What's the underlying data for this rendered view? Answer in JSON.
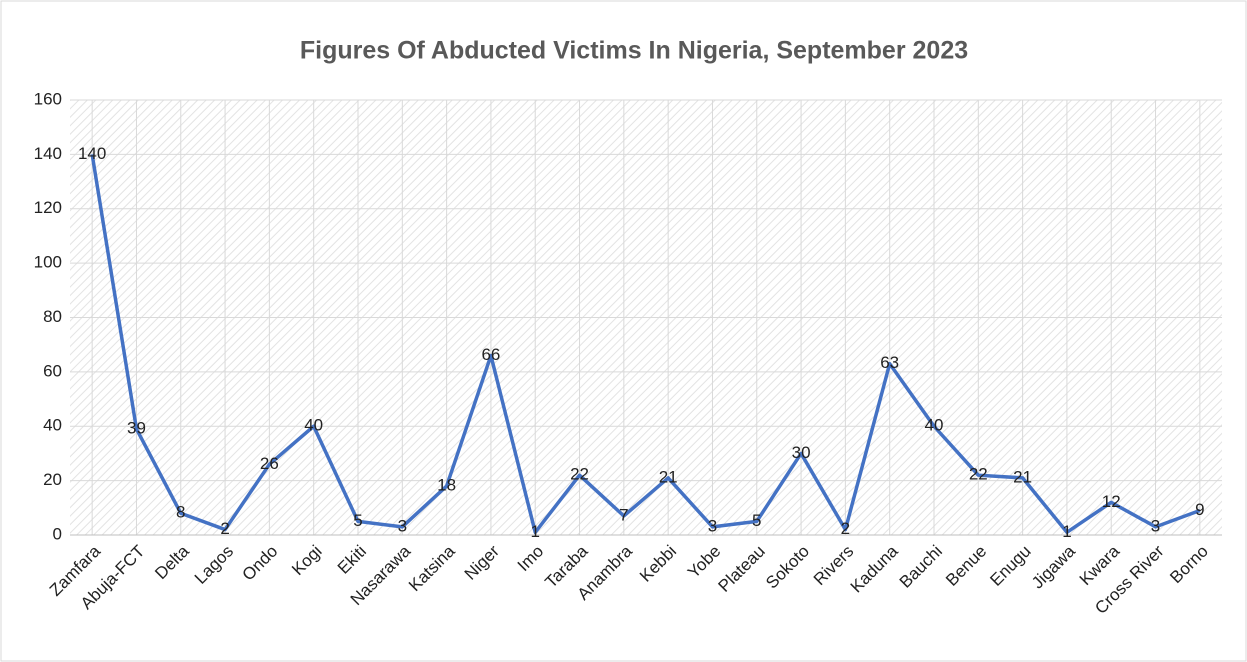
{
  "chart_data": {
    "type": "line",
    "title": "Figures Of Abducted Victims In Nigeria, September 2023",
    "categories": [
      "Zamfara",
      "Abuja-FCT",
      "Delta",
      "Lagos",
      "Ondo",
      "Kogi",
      "Ekiti",
      "Nasarawa",
      "Katsina",
      "Niger",
      "Imo",
      "Taraba",
      "Anambra",
      "Kebbi",
      "Yobe",
      "Plateau",
      "Sokoto",
      "Rivers",
      "Kaduna",
      "Bauchi",
      "Benue",
      "Enugu",
      "Jigawa",
      "Kwara",
      "Cross River",
      "Borno"
    ],
    "values": [
      140,
      39,
      8,
      2,
      26,
      40,
      5,
      3,
      18,
      66,
      1,
      22,
      7,
      21,
      3,
      5,
      30,
      2,
      63,
      40,
      22,
      21,
      1,
      12,
      3,
      9
    ],
    "color": "#4472c4",
    "ylim": [
      0,
      160
    ],
    "yticks": [
      0,
      20,
      40,
      60,
      80,
      100,
      120,
      140,
      160
    ],
    "grid": true
  }
}
